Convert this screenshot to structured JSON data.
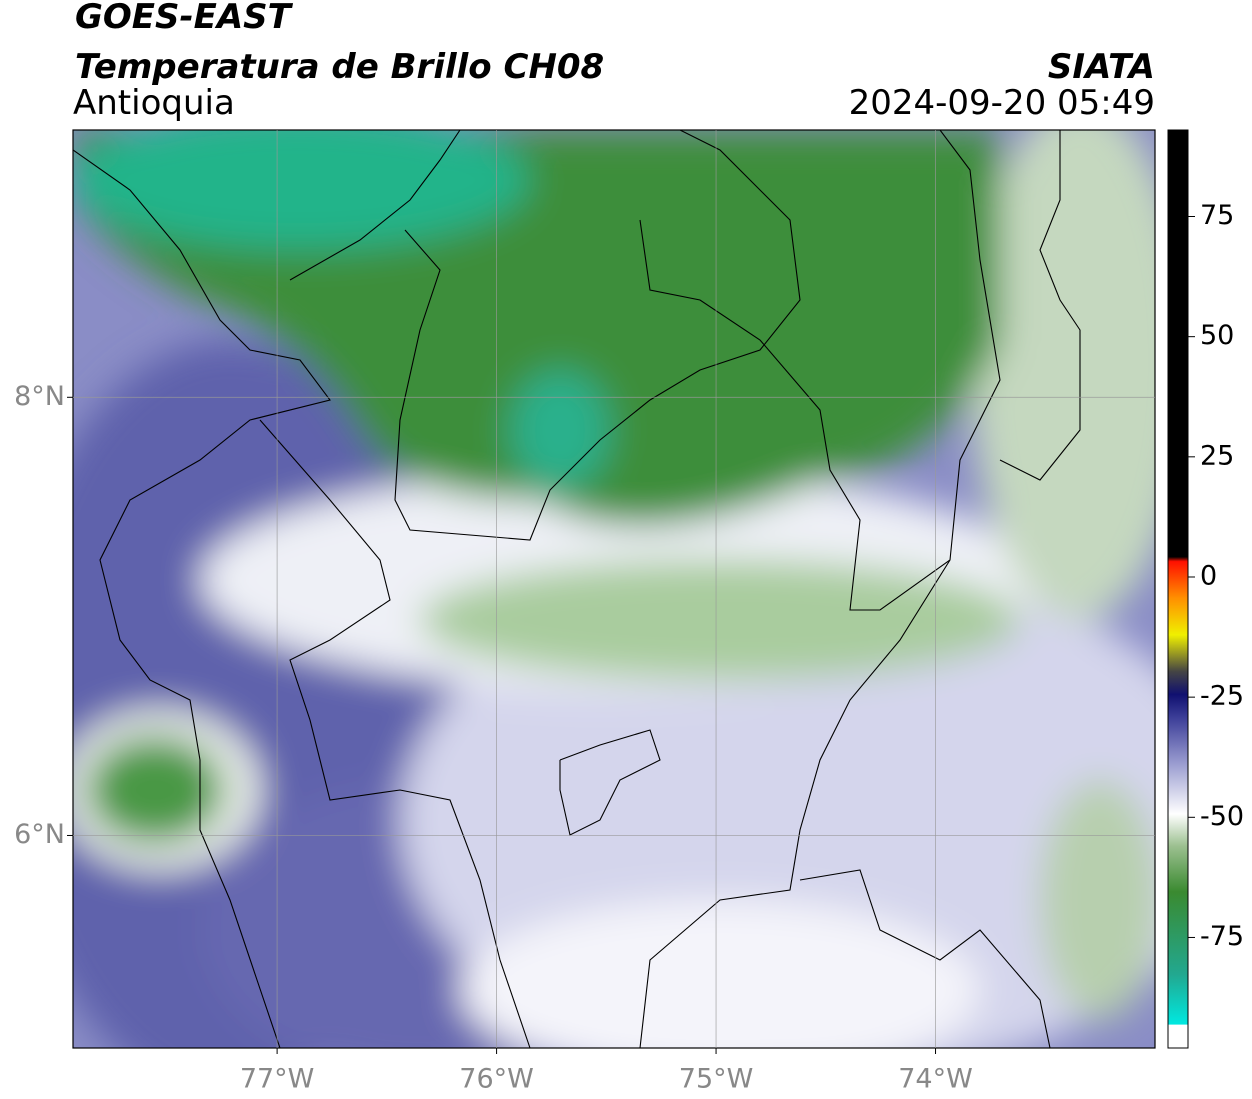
{
  "header": {
    "title": "GOES-EAST",
    "subtitle": "Temperatura de Brillo CH08",
    "region": "Antioquia",
    "source": "SIATA",
    "datetime": "2024-09-20 05:49"
  },
  "map": {
    "xlim": [
      -77.93,
      -73.0
    ],
    "ylim": [
      5.03,
      9.22
    ],
    "xticks": [
      {
        "value": -77,
        "label": "77°W"
      },
      {
        "value": -76,
        "label": "76°W"
      },
      {
        "value": -75,
        "label": "75°W"
      },
      {
        "value": -74,
        "label": "74°W"
      }
    ],
    "yticks": [
      {
        "value": 8,
        "label": "8°N"
      },
      {
        "value": 6,
        "label": "6°N"
      }
    ],
    "grid": true
  },
  "colorbar": {
    "lim": [
      -98,
      93
    ],
    "ticks": [
      75,
      50,
      25,
      0,
      -25,
      -50,
      -75
    ]
  }
}
